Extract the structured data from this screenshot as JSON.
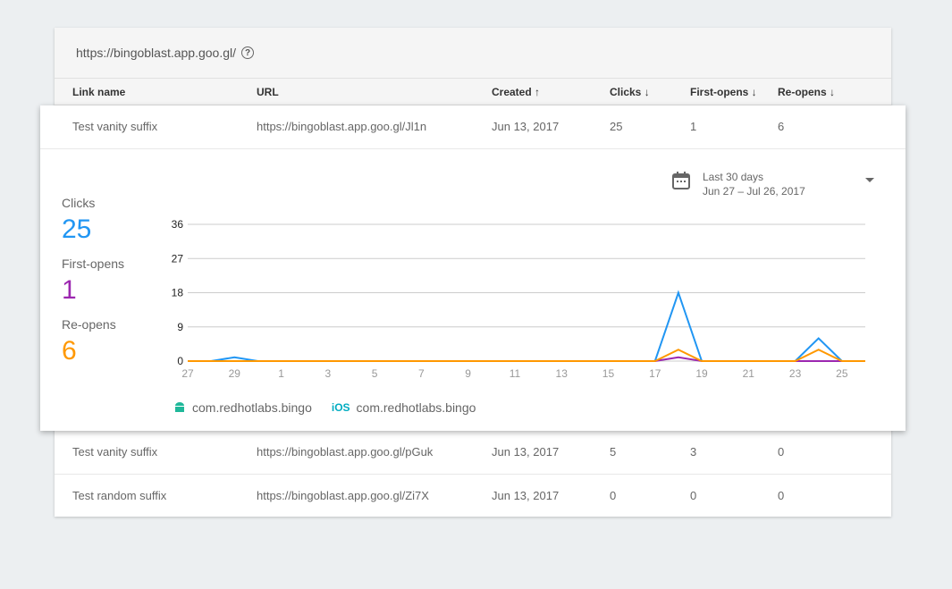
{
  "header": {
    "domain": "https://bingoblast.app.goo.gl/",
    "help_icon": "help-circle-icon"
  },
  "columns": [
    "Link name",
    "URL",
    "Created ↑",
    "Clicks ↓",
    "First-opens ↓",
    "Re-opens ↓"
  ],
  "rows": [
    [
      "Test vanity suffix",
      "https://bingoblast.app.goo.gl/Jl1n",
      "Jun 13, 2017",
      "25",
      "1",
      "6"
    ],
    [
      "Test vanity suffix",
      "https://bingoblast.app.goo.gl/pGuk",
      "Jun 13, 2017",
      "5",
      "3",
      "0"
    ],
    [
      "Test random suffix",
      "https://bingoblast.app.goo.gl/Zi7X",
      "Jun 13, 2017",
      "0",
      "0",
      "0"
    ]
  ],
  "detail": {
    "stats": [
      {
        "label": "Clicks",
        "value": "25",
        "color": "#2196f3"
      },
      {
        "label": "First-opens",
        "value": "1",
        "color": "#9c27b0"
      },
      {
        "label": "Re-opens",
        "value": "6",
        "color": "#ff9800"
      }
    ],
    "range": {
      "label": "Last 30 days",
      "dates": "Jun 27 – Jul 26, 2017",
      "icon": "calendar-icon"
    },
    "legend": [
      {
        "icon": "android-icon",
        "label": "com.redhotlabs.bingo",
        "color": "#1fb89a"
      },
      {
        "icon": "ios-icon",
        "glyph": "iOS",
        "label": "com.redhotlabs.bingo",
        "color": "#00acc1"
      }
    ]
  },
  "chart_data": {
    "type": "line",
    "x": [
      "Jun 27",
      "Jun 28",
      "Jun 29",
      "Jun 30",
      "Jul 1",
      "Jul 2",
      "Jul 3",
      "Jul 4",
      "Jul 5",
      "Jul 6",
      "Jul 7",
      "Jul 8",
      "Jul 9",
      "Jul 10",
      "Jul 11",
      "Jul 12",
      "Jul 13",
      "Jul 14",
      "Jul 15",
      "Jul 16",
      "Jul 17",
      "Jul 18",
      "Jul 19",
      "Jul 20",
      "Jul 21",
      "Jul 22",
      "Jul 23",
      "Jul 24",
      "Jul 25",
      "Jul 26"
    ],
    "xtick_labels": [
      "27",
      "29",
      "1",
      "3",
      "5",
      "7",
      "9",
      "11",
      "13",
      "15",
      "17",
      "19",
      "21",
      "23",
      "25"
    ],
    "yticks": [
      0,
      9,
      18,
      27,
      36
    ],
    "ylim": [
      0,
      36
    ],
    "grid": true,
    "series": [
      {
        "name": "Clicks",
        "color": "#2196f3",
        "values": [
          0,
          0,
          1,
          0,
          0,
          0,
          0,
          0,
          0,
          0,
          0,
          0,
          0,
          0,
          0,
          0,
          0,
          0,
          0,
          0,
          0,
          18,
          0,
          0,
          0,
          0,
          0,
          6,
          0,
          0
        ]
      },
      {
        "name": "First-opens",
        "color": "#9c27b0",
        "values": [
          0,
          0,
          0,
          0,
          0,
          0,
          0,
          0,
          0,
          0,
          0,
          0,
          0,
          0,
          0,
          0,
          0,
          0,
          0,
          0,
          0,
          1,
          0,
          0,
          0,
          0,
          0,
          0,
          0,
          0
        ]
      },
      {
        "name": "Re-opens",
        "color": "#ff9800",
        "values": [
          0,
          0,
          0,
          0,
          0,
          0,
          0,
          0,
          0,
          0,
          0,
          0,
          0,
          0,
          0,
          0,
          0,
          0,
          0,
          0,
          0,
          3,
          0,
          0,
          0,
          0,
          0,
          3,
          0,
          0
        ]
      }
    ]
  }
}
